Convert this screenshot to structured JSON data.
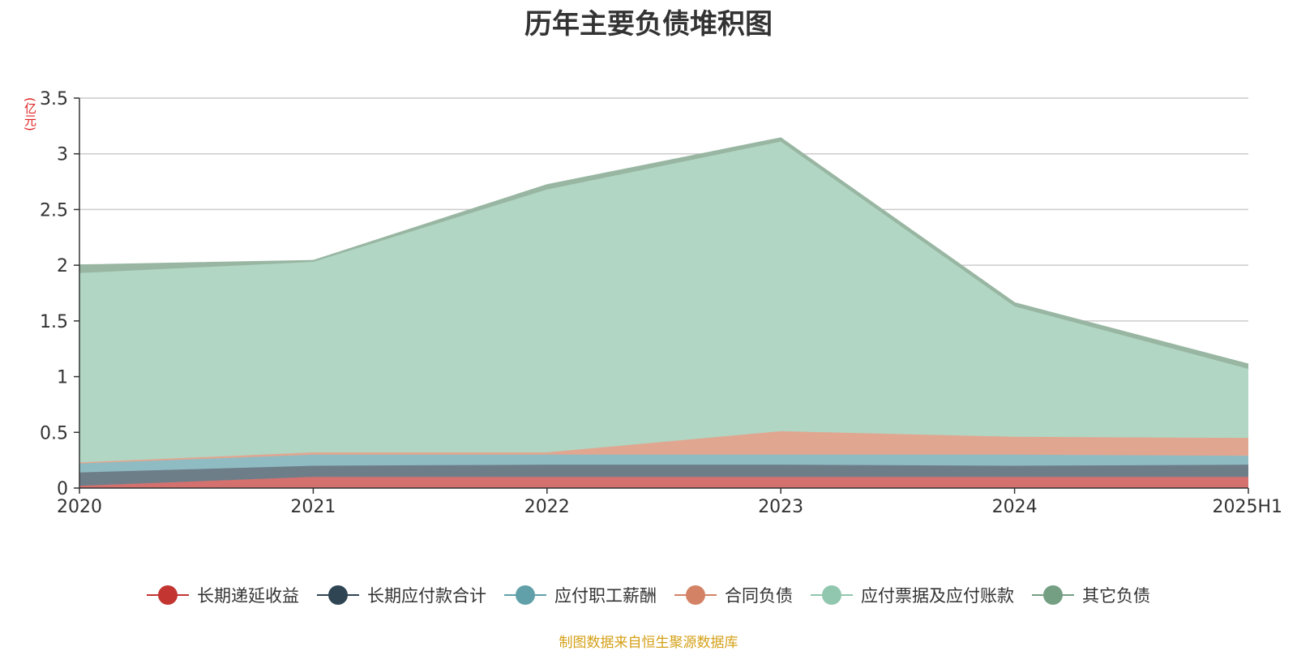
{
  "title": "历年主要负债堆积图",
  "unit_label": "(亿元)",
  "source_note": "制图数据来自恒生聚源数据库",
  "chart_data": {
    "type": "area",
    "stacked": true,
    "categories": [
      "2020",
      "2021",
      "2022",
      "2023",
      "2024",
      "2025H1"
    ],
    "ylim": [
      0,
      3.5
    ],
    "yticks": [
      0,
      0.5,
      1,
      1.5,
      2,
      2.5,
      3,
      3.5
    ],
    "ytick_labels": [
      "0",
      "0.5",
      "1",
      "1.5",
      "2",
      "2.5",
      "3",
      "3.5"
    ],
    "grid": true,
    "legend_position": "bottom",
    "series": [
      {
        "name": "长期递延收益",
        "values": [
          0.02,
          0.1,
          0.1,
          0.1,
          0.1,
          0.1
        ],
        "color": "#c23531",
        "fill": "#d4716f"
      },
      {
        "name": "长期应付款合计",
        "values": [
          0.12,
          0.1,
          0.11,
          0.11,
          0.1,
          0.11
        ],
        "color": "#2f4554",
        "fill": "#6e7e89"
      },
      {
        "name": "应付职工薪酬",
        "values": [
          0.08,
          0.1,
          0.09,
          0.09,
          0.1,
          0.08
        ],
        "color": "#61a0a8",
        "fill": "#8fbcc3"
      },
      {
        "name": "合同负债",
        "values": [
          0.01,
          0.02,
          0.02,
          0.21,
          0.16,
          0.16
        ],
        "color": "#d48265",
        "fill": "#e1a690"
      },
      {
        "name": "应付票据及应付账款",
        "values": [
          1.7,
          1.71,
          2.36,
          2.6,
          1.17,
          0.62
        ],
        "color": "#91c7ae",
        "fill": "#b1d6c4"
      },
      {
        "name": "其它负债",
        "values": [
          0.07,
          0.01,
          0.04,
          0.03,
          0.03,
          0.04
        ],
        "color": "#749f83",
        "fill": "#98b6a2"
      }
    ]
  }
}
